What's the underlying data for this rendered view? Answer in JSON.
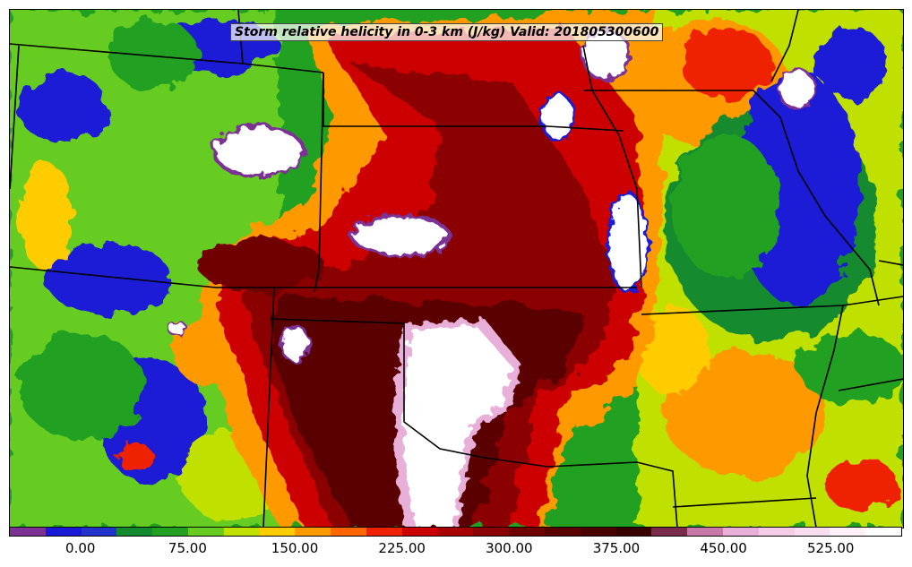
{
  "map": {
    "title": "Storm relative helicity in 0-3 km (J/kg) Valid: 201805300600",
    "variable": "Storm relative helicity in 0-3 km",
    "units": "J/kg",
    "valid_time": "201805300600"
  },
  "colorbar": {
    "min": -50,
    "max": 575,
    "step": 25,
    "colors": [
      "#7b3294",
      "#1a1ad6",
      "#2233cc",
      "#148a2e",
      "#22a022",
      "#66cc22",
      "#c0e000",
      "#ffcc00",
      "#ff9900",
      "#ff6600",
      "#ee2200",
      "#cc0000",
      "#a80000",
      "#8b0000",
      "#700000",
      "#5a0000",
      "#4a0000",
      "#3a0000",
      "#7a2a4a",
      "#c878a8",
      "#e8b0d8",
      "#f4cce8",
      "#f8ddf0",
      "#fff0fa",
      "#ffffff"
    ],
    "tick_labels": [
      "0.00",
      "75.00",
      "150.00",
      "225.00",
      "300.00",
      "375.00",
      "450.00",
      "525.00"
    ],
    "tick_values": [
      0,
      75,
      150,
      225,
      300,
      375,
      450,
      525
    ]
  }
}
